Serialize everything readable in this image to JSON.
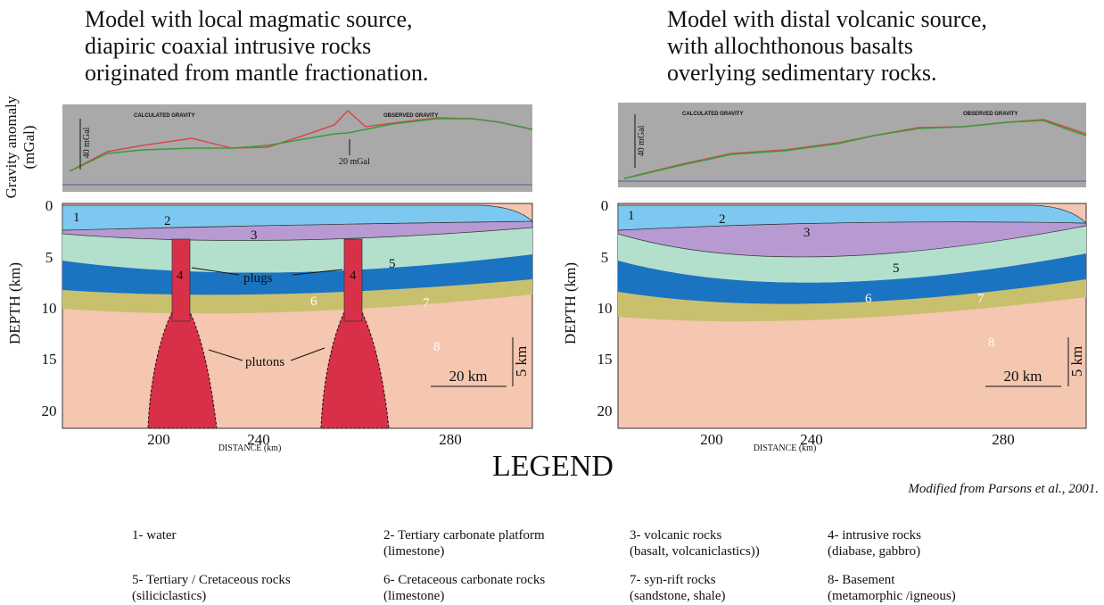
{
  "left_panel": {
    "title": [
      "Model with local magmatic source,",
      "diapiric coaxial intrusive rocks",
      "originated  from  mantle fractionation."
    ],
    "gravity": {
      "y_axis_label": [
        "Gravity anomaly",
        "(mGal)"
      ],
      "calculated_label": "CALCULATED GRAVITY",
      "observed_label": "OBSERVED GRAVITY",
      "scale_label": "40 mGal",
      "difference_label": "20 mGal"
    },
    "section": {
      "depth_axis_label": "DEPTH (km)",
      "depth_ticks": [
        "0",
        "5",
        "10",
        "15",
        "20"
      ],
      "distance_ticks": [
        "200",
        "240",
        "280"
      ],
      "distance_axis_label": "DISTANCE (km)",
      "layer_labels": [
        "1",
        "2",
        "3",
        "4",
        "4",
        "5",
        "6",
        "7",
        "8"
      ],
      "plugs_label": "plugs",
      "plutons_label": "plutons",
      "scale_horizontal": "20 km",
      "scale_vertical": "5 km"
    }
  },
  "right_panel": {
    "title": [
      "Model with distal  volcanic source,",
      "with allochthonous basalts",
      "overlying sedimentary rocks."
    ],
    "gravity": {
      "calculated_label": "CALCULATED GRAVITY",
      "observed_label": "OBSERVED GRAVITY",
      "scale_label": "40 mGal"
    },
    "section": {
      "depth_axis_label": "DEPTH (km)",
      "depth_ticks": [
        "0",
        "5",
        "10",
        "15",
        "20"
      ],
      "distance_ticks": [
        "200",
        "240",
        "280"
      ],
      "distance_axis_label": "DISTANCE (km)",
      "layer_labels": [
        "1",
        "2",
        "3",
        "5",
        "6",
        "7",
        "8"
      ],
      "scale_horizontal": "20 km",
      "scale_vertical": "5 km"
    }
  },
  "credit": "Modified from Parsons et al., 2001.",
  "legend": {
    "title": "LEGEND",
    "items": [
      [
        "1- water"
      ],
      [
        "2- Tertiary carbonate platform",
        "(limestone)"
      ],
      [
        "3- volcanic rocks",
        "(basalt, volcaniclastics))"
      ],
      [
        "4- intrusive  rocks",
        "(diabase, gabbro)"
      ],
      [
        "5- Tertiary / Cretaceous rocks",
        "(siliciclastics)"
      ],
      [
        "6- Cretaceous  carbonate  rocks",
        "(limestone)"
      ],
      [
        "7- syn-rift rocks",
        "(sandstone,  shale)"
      ],
      [
        "8- Basement",
        "(metamorphic /igneous)"
      ]
    ]
  }
}
